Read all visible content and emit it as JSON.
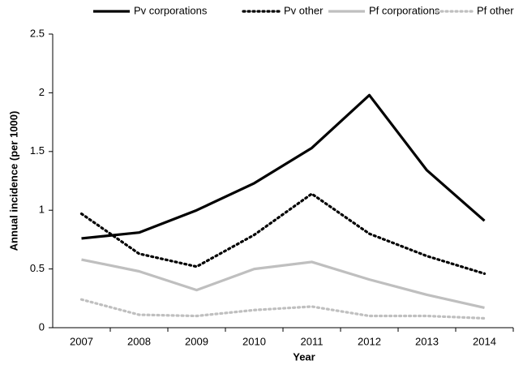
{
  "chart_data": {
    "type": "line",
    "x_label": "Year",
    "y_label": "Annual incidence (per 1000)",
    "categories": [
      "2007",
      "2008",
      "2009",
      "2010",
      "2011",
      "2012",
      "2013",
      "2014"
    ],
    "series": [
      {
        "name": "Pv corporations",
        "color": "#000000",
        "dash": "solid",
        "values": [
          0.76,
          0.81,
          1.0,
          1.23,
          1.53,
          1.98,
          1.34,
          0.91
        ]
      },
      {
        "name": "Pv other",
        "color": "#000000",
        "dash": "dotted",
        "values": [
          0.97,
          0.63,
          0.52,
          0.79,
          1.14,
          0.8,
          0.61,
          0.46
        ]
      },
      {
        "name": "Pf corporations",
        "color": "#bfbfbf",
        "dash": "solid",
        "values": [
          0.58,
          0.48,
          0.32,
          0.5,
          0.56,
          0.41,
          0.28,
          0.17
        ]
      },
      {
        "name": "Pf other",
        "color": "#bfbfbf",
        "dash": "dotted",
        "values": [
          0.24,
          0.11,
          0.1,
          0.15,
          0.18,
          0.1,
          0.1,
          0.08
        ]
      }
    ],
    "ylim": [
      0,
      2.5
    ],
    "yticks": [
      0,
      0.5,
      1,
      1.5,
      2,
      2.5
    ],
    "grid": false,
    "legend": "top"
  }
}
